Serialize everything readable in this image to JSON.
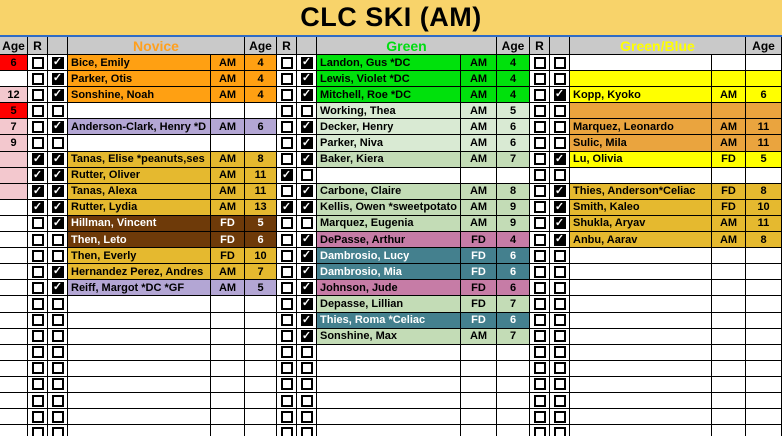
{
  "title": "CLC SKI (AM)",
  "header": {
    "age": "Age",
    "r": "R",
    "checkbox": "",
    "sections": [
      "Novice",
      "Green",
      "Green/Blue"
    ]
  },
  "palette": {
    "red": "#FF0000",
    "pink": "#F3C8CE",
    "orange": "#FFA012",
    "lavender": "#B3A6D4",
    "gold": "#E5B92F",
    "brown": "#6E3A09",
    "grnB": "#00E10C",
    "grnL": "#D9EAD3",
    "grnM": "#C3DCB6",
    "teal": "#44808E",
    "mauve": "#C67CA6",
    "yellow": "#FFFF00",
    "orange2": "#EAA43E",
    "white": "#FFFFFF",
    "title_bg": "#F8D36A",
    "header_bg": "#C9C9C9",
    "header_novice": "#FFA01E",
    "header_green": "#00DD11",
    "header_greenblue": "#FFFF00",
    "divider_blue": "#2F6BC6",
    "grid_line": "#000000"
  },
  "white_text": [
    "brown",
    "teal"
  ],
  "rows": [
    {
      "age": [
        "6",
        "red"
      ],
      "novice": [
        0,
        1,
        "Bice, Emily",
        "AM",
        "4",
        "orange"
      ],
      "green": [
        0,
        1,
        "Landon, Gus *DC",
        "AM",
        "4",
        "grnB"
      ],
      "greenblue": [
        0,
        0,
        "",
        "",
        "",
        "white"
      ]
    },
    {
      "age": [
        "",
        "white"
      ],
      "novice": [
        0,
        1,
        "Parker, Otis",
        "AM",
        "4",
        "orange"
      ],
      "green": [
        0,
        1,
        "Lewis, Violet *DC",
        "AM",
        "4",
        "grnB"
      ],
      "greenblue": [
        0,
        0,
        "",
        "",
        "",
        "yellow"
      ]
    },
    {
      "age": [
        "12",
        "pink"
      ],
      "novice": [
        0,
        1,
        "Sonshine, Noah",
        "AM",
        "4",
        "orange"
      ],
      "green": [
        0,
        1,
        "Mitchell, Roe *DC",
        "AM",
        "4",
        "grnB"
      ],
      "greenblue": [
        0,
        1,
        "Kopp, Kyoko",
        "AM",
        "6",
        "yellow"
      ]
    },
    {
      "age": [
        "5",
        "red"
      ],
      "novice": [
        0,
        0,
        "",
        "",
        "",
        "white"
      ],
      "green": [
        0,
        0,
        "Working, Thea",
        "AM",
        "5",
        "grnL"
      ],
      "greenblue": [
        0,
        0,
        "",
        "",
        "",
        "orange2"
      ]
    },
    {
      "age": [
        "7",
        "pink"
      ],
      "novice": [
        0,
        1,
        "Anderson-Clark, Henry *D",
        "AM",
        "6",
        "lavender"
      ],
      "green": [
        0,
        1,
        "Decker, Henry",
        "AM",
        "6",
        "grnL"
      ],
      "greenblue": [
        0,
        0,
        "Marquez, Leonardo",
        "AM",
        "11",
        "orange2"
      ]
    },
    {
      "age": [
        "9",
        "pink"
      ],
      "novice": [
        0,
        0,
        "",
        "",
        "",
        "white"
      ],
      "green": [
        0,
        1,
        "Parker, Niva",
        "AM",
        "6",
        "grnL"
      ],
      "greenblue": [
        0,
        0,
        "Sulic, Mila",
        "AM",
        "11",
        "orange2"
      ]
    },
    {
      "age": [
        "",
        "pink"
      ],
      "novice": [
        1,
        1,
        "Tanas, Elise *peanuts,ses",
        "AM",
        "8",
        "gold"
      ],
      "green": [
        0,
        1,
        "Baker, Kiera",
        "AM",
        "7",
        "grnM"
      ],
      "greenblue": [
        0,
        1,
        "Lu, Olivia",
        "FD",
        "5",
        "yellow"
      ]
    },
    {
      "age": [
        "",
        "pink"
      ],
      "novice": [
        1,
        1,
        "Rutter, Oliver",
        "AM",
        "11",
        "gold"
      ],
      "green": [
        1,
        0,
        "",
        "",
        "",
        "white"
      ],
      "greenblue": [
        0,
        0,
        "",
        "",
        "",
        "white"
      ]
    },
    {
      "age": [
        "",
        "pink"
      ],
      "novice": [
        1,
        1,
        "Tanas, Alexa",
        "AM",
        "11",
        "gold"
      ],
      "green": [
        0,
        1,
        "Carbone, Claire",
        "AM",
        "8",
        "grnM"
      ],
      "greenblue": [
        0,
        1,
        "Thies, Anderson*Celiac",
        "FD",
        "8",
        "gold"
      ]
    },
    {
      "age": [
        "",
        "white"
      ],
      "novice": [
        1,
        1,
        "Rutter, Lydia",
        "AM",
        "13",
        "gold"
      ],
      "green": [
        1,
        1,
        "Kellis, Owen *sweetpotato",
        "AM",
        "9",
        "grnM"
      ],
      "greenblue": [
        0,
        1,
        "Smith, Kaleo",
        "FD",
        "10",
        "gold"
      ]
    },
    {
      "age": [
        "",
        "white"
      ],
      "novice": [
        0,
        1,
        "Hillman, Vincent",
        "FD",
        "5",
        "brown"
      ],
      "green": [
        0,
        0,
        "Marquez, Eugenia",
        "AM",
        "9",
        "grnM"
      ],
      "greenblue": [
        0,
        1,
        "Shukla, Aryav",
        "AM",
        "11",
        "gold"
      ]
    },
    {
      "age": [
        "",
        "white"
      ],
      "novice": [
        0,
        0,
        "Then, Leto",
        "FD",
        "6",
        "brown"
      ],
      "green": [
        0,
        1,
        "DePasse, Arthur",
        "FD",
        "4",
        "mauve"
      ],
      "greenblue": [
        0,
        1,
        "Anbu, Aarav",
        "AM",
        "8",
        "gold"
      ]
    },
    {
      "age": [
        "",
        "white"
      ],
      "novice": [
        0,
        0,
        "Then, Everly",
        "FD",
        "10",
        "gold"
      ],
      "green": [
        0,
        1,
        "Dambrosio, Lucy",
        "FD",
        "6",
        "teal"
      ],
      "greenblue": [
        0,
        0,
        "",
        "",
        "",
        "white"
      ]
    },
    {
      "age": [
        "",
        "white"
      ],
      "novice": [
        0,
        1,
        "Hernandez Perez, Andres",
        "AM",
        "7",
        "gold"
      ],
      "green": [
        0,
        1,
        "Dambrosio, Mia",
        "FD",
        "6",
        "teal"
      ],
      "greenblue": [
        0,
        0,
        "",
        "",
        "",
        "white"
      ]
    },
    {
      "age": [
        "",
        "white"
      ],
      "novice": [
        0,
        1,
        "Reiff, Margot *DC *GF",
        "AM",
        "5",
        "lavender"
      ],
      "green": [
        0,
        1,
        "Johnson, Jude",
        "FD",
        "6",
        "mauve"
      ],
      "greenblue": [
        0,
        0,
        "",
        "",
        "",
        "white"
      ]
    },
    {
      "age": [
        "",
        "white"
      ],
      "novice": [
        0,
        0,
        "",
        "",
        "",
        "white"
      ],
      "green": [
        0,
        1,
        "Depasse, Lillian",
        "FD",
        "7",
        "grnM"
      ],
      "greenblue": [
        0,
        0,
        "",
        "",
        "",
        "white"
      ]
    },
    {
      "age": [
        "",
        "white"
      ],
      "novice": [
        0,
        0,
        "",
        "",
        "",
        "white"
      ],
      "green": [
        0,
        1,
        "Thies, Roma *Celiac",
        "FD",
        "6",
        "teal"
      ],
      "greenblue": [
        0,
        0,
        "",
        "",
        "",
        "white"
      ]
    },
    {
      "age": [
        "",
        "white"
      ],
      "novice": [
        0,
        0,
        "",
        "",
        "",
        "white"
      ],
      "green": [
        0,
        1,
        "Sonshine, Max",
        "AM",
        "7",
        "grnM"
      ],
      "greenblue": [
        0,
        0,
        "",
        "",
        "",
        "white"
      ]
    },
    {
      "age": [
        "",
        "white"
      ],
      "novice": [
        0,
        0,
        "",
        "",
        "",
        "white"
      ],
      "green": [
        0,
        0,
        "",
        "",
        "",
        "white"
      ],
      "greenblue": [
        0,
        0,
        "",
        "",
        "",
        "white"
      ]
    },
    {
      "age": [
        "",
        "white"
      ],
      "novice": [
        0,
        0,
        "",
        "",
        "",
        "white"
      ],
      "green": [
        0,
        0,
        "",
        "",
        "",
        "white"
      ],
      "greenblue": [
        0,
        0,
        "",
        "",
        "",
        "white"
      ]
    },
    {
      "age": [
        "",
        "white"
      ],
      "novice": [
        0,
        0,
        "",
        "",
        "",
        "white"
      ],
      "green": [
        0,
        0,
        "",
        "",
        "",
        "white"
      ],
      "greenblue": [
        0,
        0,
        "",
        "",
        "",
        "white"
      ]
    },
    {
      "age": [
        "",
        "white"
      ],
      "novice": [
        0,
        0,
        "",
        "",
        "",
        "white"
      ],
      "green": [
        0,
        0,
        "",
        "",
        "",
        "white"
      ],
      "greenblue": [
        0,
        0,
        "",
        "",
        "",
        "white"
      ]
    },
    {
      "age": [
        "",
        "white"
      ],
      "novice": [
        0,
        0,
        "",
        "",
        "",
        "white"
      ],
      "green": [
        0,
        0,
        "",
        "",
        "",
        "white"
      ],
      "greenblue": [
        0,
        0,
        "",
        "",
        "",
        "white"
      ]
    },
    {
      "age": [
        "",
        "white"
      ],
      "novice": [
        0,
        0,
        "",
        "",
        "",
        "white"
      ],
      "green": [
        0,
        0,
        "",
        "",
        "",
        "white"
      ],
      "greenblue": [
        0,
        0,
        "",
        "",
        "",
        "white"
      ]
    }
  ]
}
